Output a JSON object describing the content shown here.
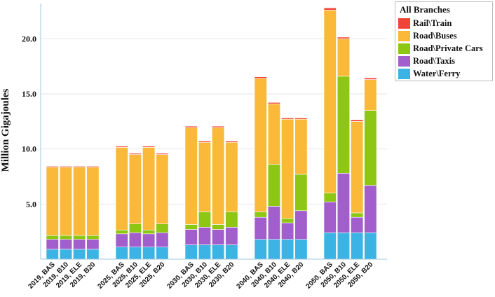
{
  "chart_data": {
    "type": "bar",
    "stacked": true,
    "ylabel": "Million Gigajoules",
    "yticks": [
      5.0,
      10.0,
      15.0,
      20.0
    ],
    "ylim": [
      0,
      23.2
    ],
    "categories": [
      "2019, BAS",
      "2019, B10",
      "2019, ELE",
      "2019, B20",
      "2025, BAS",
      "2025, B10",
      "2025, ELE",
      "2025, B20",
      "2030, BAS",
      "2030, B10",
      "2030, ELE",
      "2030, B20",
      "2040, BAS",
      "2040, B10",
      "2040, ELE",
      "2040, B20",
      "2050, BAS",
      "2050, B10",
      "2050, ELE",
      "2050, B20"
    ],
    "groups": [
      4,
      4,
      4,
      4,
      4
    ],
    "series": [
      {
        "name": "Water\\Ferry",
        "color": "#3bb4e5",
        "values": [
          0.9,
          0.9,
          0.9,
          0.9,
          1.1,
          1.1,
          1.1,
          1.1,
          1.3,
          1.3,
          1.3,
          1.3,
          1.8,
          1.8,
          1.8,
          1.8,
          2.4,
          2.4,
          2.4,
          2.4
        ]
      },
      {
        "name": "Road\\Taxis",
        "color": "#a35ecd",
        "values": [
          0.9,
          0.9,
          0.9,
          0.9,
          1.2,
          1.3,
          1.2,
          1.3,
          1.4,
          1.6,
          1.4,
          1.6,
          2.0,
          3.0,
          1.5,
          2.6,
          2.8,
          5.4,
          1.4,
          4.3
        ]
      },
      {
        "name": "Road\\Private Cars",
        "color": "#8dc713",
        "values": [
          0.35,
          0.35,
          0.35,
          0.35,
          0.35,
          0.8,
          0.35,
          0.8,
          0.45,
          1.4,
          0.45,
          1.4,
          0.5,
          3.8,
          0.4,
          3.3,
          0.8,
          8.8,
          0.4,
          6.8
        ]
      },
      {
        "name": "Road\\Buses",
        "color": "#fbb939",
        "values": [
          6.2,
          6.2,
          6.2,
          6.2,
          7.5,
          6.3,
          7.5,
          6.3,
          8.8,
          6.3,
          8.8,
          6.3,
          12.1,
          5.5,
          9.0,
          5.0,
          16.6,
          3.4,
          8.3,
          2.8
        ]
      },
      {
        "name": "Rail\\Train",
        "color": "#f04438",
        "values": [
          0.08,
          0.08,
          0.08,
          0.08,
          0.1,
          0.1,
          0.1,
          0.1,
          0.12,
          0.12,
          0.12,
          0.12,
          0.15,
          0.12,
          0.12,
          0.12,
          0.2,
          0.15,
          0.15,
          0.15
        ]
      }
    ]
  },
  "legend": {
    "title": "All Branches",
    "items": [
      {
        "label": "Rail\\Train",
        "color": "#f04438"
      },
      {
        "label": "Road\\Buses",
        "color": "#fbb939"
      },
      {
        "label": "Road\\Private Cars",
        "color": "#8dc713"
      },
      {
        "label": "Road\\Taxis",
        "color": "#a35ecd"
      },
      {
        "label": "Water\\Ferry",
        "color": "#3bb4e5"
      }
    ]
  }
}
